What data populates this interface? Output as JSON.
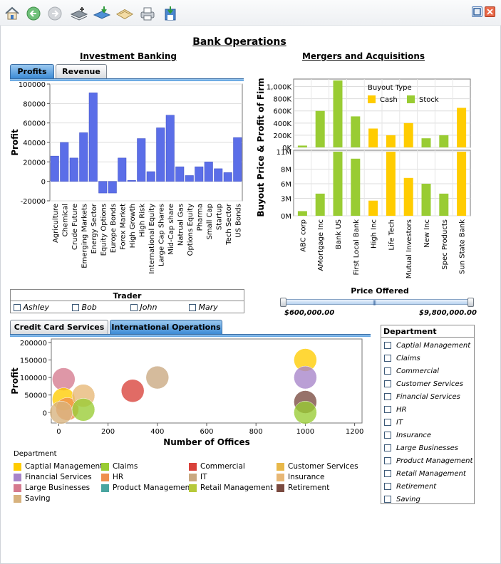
{
  "toolbar": {
    "icons": [
      "home-icon",
      "back-icon",
      "forward-icon",
      "add-record-icon",
      "download-icon",
      "open-icon",
      "print-icon",
      "save-icon"
    ],
    "window": [
      "maximize-icon",
      "close-icon"
    ]
  },
  "colors": {
    "bar_blue": "#5b6ee8",
    "cash": "#ffcc00",
    "stock": "#99cc33",
    "accent_tab": "#3d8bd6"
  },
  "page": {
    "title": "Bank Operations"
  },
  "investment": {
    "title": "Investment Banking",
    "tabs": [
      "Profits",
      "Revenue"
    ],
    "active_tab": "Profits"
  },
  "mergers": {
    "title": "Mergers and Acquisitions"
  },
  "trader": {
    "title": "Trader",
    "options": [
      "Ashley",
      "Bob",
      "John",
      "Mary"
    ]
  },
  "price": {
    "title": "Price Offered",
    "min_label": "$600,000.00",
    "max_label": "$9,800,000.00",
    "range": [
      600000,
      9800000
    ]
  },
  "operations": {
    "tabs": [
      "Credit Card Services",
      "International Operations"
    ],
    "active_tab": "International Operations"
  },
  "department_filter": {
    "title": "Department",
    "options": [
      "Captial Management",
      "Claims",
      "Commercial",
      "Customer Services",
      "Financial Services",
      "HR",
      "IT",
      "Insurance",
      "Large Businesses",
      "Product Management",
      "Retail Management",
      "Retirement",
      "Saving"
    ]
  },
  "chart_data": [
    {
      "type": "bar",
      "title": "",
      "ylabel": "Profit",
      "xlabel": "",
      "ylim": [
        -20000,
        100000
      ],
      "yticks": [
        "100000",
        "80000",
        "60000",
        "40000",
        "20000",
        "0",
        "-20000"
      ],
      "categories": [
        "Agriculture",
        "Chemical",
        "Crude Future",
        "Emerging Markets",
        "Energy Sector",
        "Equity Options",
        "Europe Bonds",
        "Forex Market",
        "High Growth",
        "High Risk",
        "International Equity",
        "Large Cap Shares",
        "Mid-Cap share",
        "Natrual Gas",
        "Options Equity",
        "Pharma",
        "Small Cap",
        "Startup",
        "Tech Sector",
        "US Bonds"
      ],
      "values": [
        26000,
        40000,
        24000,
        50000,
        91000,
        -12000,
        -12000,
        24000,
        1000,
        44000,
        10000,
        55000,
        68000,
        15000,
        6000,
        15000,
        20000,
        13000,
        9000,
        45000
      ]
    },
    {
      "type": "bar",
      "title": "",
      "ylabel": "Buyout Price & Profit of Firm",
      "legend_title": "Buyout Type",
      "legend": [
        "Cash",
        "Stock"
      ],
      "categories": [
        "ABC corp",
        "AMortgage Inc",
        "Bank US",
        "First Local Bank",
        "High Inc",
        "Life Tech",
        "Mutual Investors",
        "New Inc",
        "Spec Products",
        "Sun State Bank"
      ],
      "buyout_type": [
        "Stock",
        "Stock",
        "Stock",
        "Stock",
        "Cash",
        "Cash",
        "Cash",
        "Stock",
        "Stock",
        "Cash"
      ],
      "top_ylim": [
        0,
        1100000
      ],
      "top_yticks": [
        "1,000K",
        "800K",
        "600K",
        "400K",
        "200K",
        "0K"
      ],
      "top_values": [
        30000,
        600000,
        1100000,
        510000,
        310000,
        200000,
        400000,
        150000,
        200000,
        650000
      ],
      "bottom_ylim": [
        0,
        11000000
      ],
      "bottom_yticks": [
        "11M",
        "8M",
        "6M",
        "3M",
        "0M"
      ],
      "bottom_values": [
        800000,
        3800000,
        11000000,
        9800000,
        2600000,
        11000000,
        6500000,
        5500000,
        3800000,
        11000000
      ]
    },
    {
      "type": "scatter",
      "title": "",
      "xlabel": "Number of Offices",
      "ylabel": "Profit",
      "xlim": [
        -30,
        1230
      ],
      "ylim": [
        -30000,
        210000
      ],
      "xticks": [
        "0",
        "200",
        "400",
        "600",
        "800",
        "1000",
        "1200"
      ],
      "yticks": [
        "200000",
        "150000",
        "100000",
        "50000",
        "0"
      ],
      "legend_title": "Department",
      "legend": [
        {
          "name": "Captial Management",
          "color": "#ffcc00"
        },
        {
          "name": "Claims",
          "color": "#99cc33"
        },
        {
          "name": "Commercial",
          "color": "#d9413a"
        },
        {
          "name": "Customer Services",
          "color": "#e8b84a"
        },
        {
          "name": "Financial Services",
          "color": "#a784c9"
        },
        {
          "name": "HR",
          "color": "#ef8f4e"
        },
        {
          "name": "IT",
          "color": "#c9a880"
        },
        {
          "name": "Insurance",
          "color": "#e7b776"
        },
        {
          "name": "Large Businesses",
          "color": "#d57a8e"
        },
        {
          "name": "Product Management",
          "color": "#4aa5a0"
        },
        {
          "name": "Retail Management",
          "color": "#b6c93a"
        },
        {
          "name": "Retirement",
          "color": "#7a4a40"
        },
        {
          "name": "Saving",
          "color": "#d7b27d"
        }
      ],
      "points": [
        {
          "x": 20,
          "y": 95000,
          "dept": "Large Businesses"
        },
        {
          "x": 20,
          "y": 38000,
          "dept": "Captial Management"
        },
        {
          "x": 35,
          "y": 10000,
          "dept": "HR"
        },
        {
          "x": 10,
          "y": 0,
          "dept": "Saving"
        },
        {
          "x": 100,
          "y": 48000,
          "dept": "Insurance"
        },
        {
          "x": 100,
          "y": 8000,
          "dept": "Claims"
        },
        {
          "x": 300,
          "y": 62000,
          "dept": "Commercial"
        },
        {
          "x": 400,
          "y": 100000,
          "dept": "IT"
        },
        {
          "x": 1000,
          "y": 150000,
          "dept": "Captial Management"
        },
        {
          "x": 1000,
          "y": 100000,
          "dept": "Financial Services"
        },
        {
          "x": 1000,
          "y": 30000,
          "dept": "Retirement"
        },
        {
          "x": 1000,
          "y": 0,
          "dept": "Claims"
        }
      ]
    }
  ]
}
